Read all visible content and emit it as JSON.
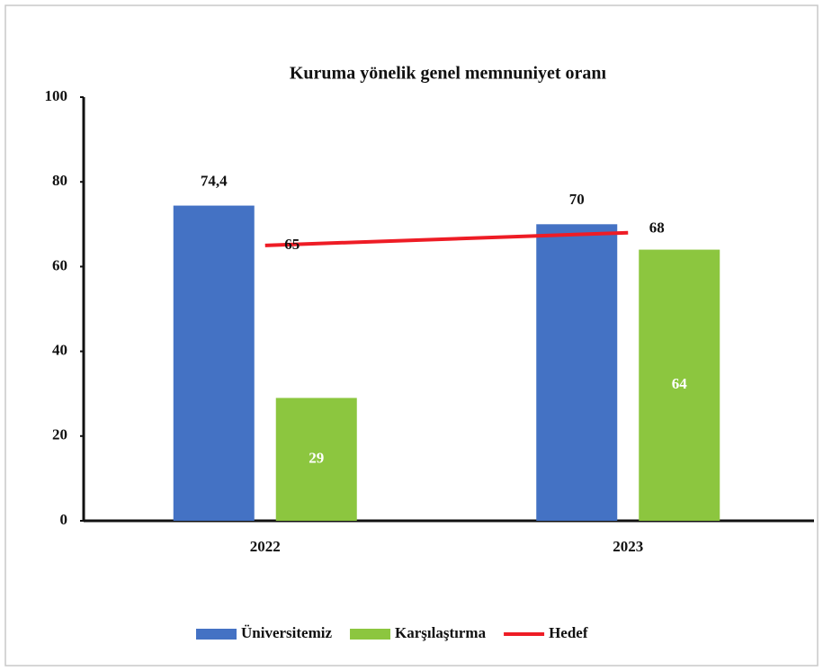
{
  "chart_data": {
    "type": "bar",
    "title": "Kuruma yönelik genel memnuniyet oranı",
    "categories": [
      "2022",
      "2023"
    ],
    "series": [
      {
        "name": "Üniversitemiz",
        "color": "#4472c4",
        "values": [
          74.4,
          70
        ],
        "value_labels": [
          "74,4",
          "70"
        ]
      },
      {
        "name": "Karşılaştırma",
        "color": "#8cc63f",
        "values": [
          29,
          64
        ]
      },
      {
        "name": "Hedef",
        "type": "line",
        "color": "#ee1c25",
        "values": [
          65,
          68
        ]
      }
    ],
    "ylim": [
      0,
      100
    ],
    "yticks": [
      0,
      20,
      40,
      60,
      80,
      100
    ],
    "legend": "bottom"
  }
}
